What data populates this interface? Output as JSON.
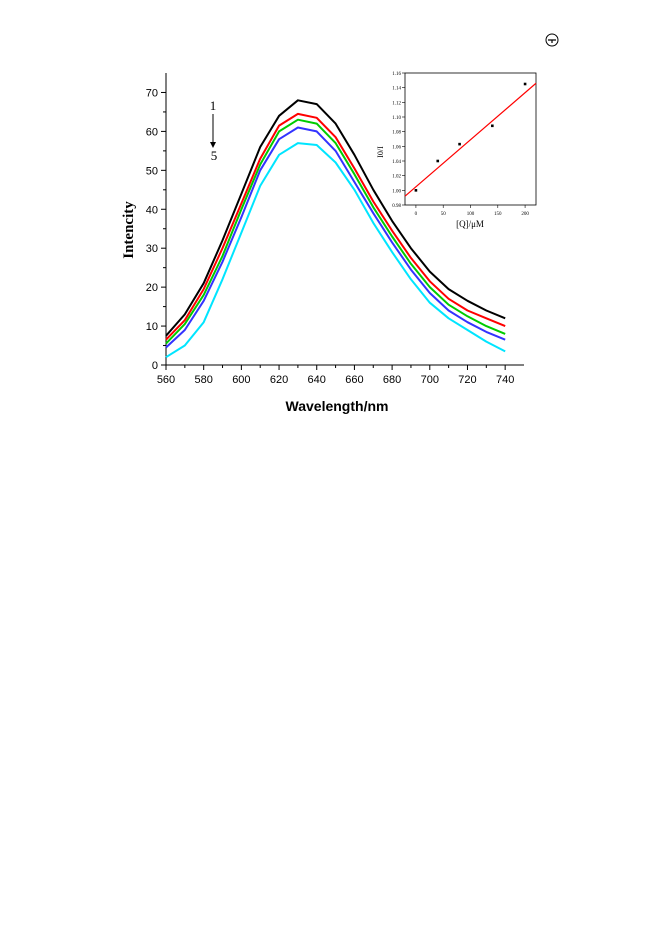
{
  "page": {
    "corner_icon": "circled-arrow-icon"
  },
  "chart_data": [
    {
      "type": "line",
      "title": "",
      "xlabel": "Wavelength/nm",
      "ylabel": "Intencity",
      "xlim": [
        560,
        750
      ],
      "ylim": [
        0,
        75
      ],
      "xticks": [
        560,
        580,
        600,
        620,
        640,
        660,
        680,
        700,
        720,
        740
      ],
      "yticks": [
        0,
        10,
        20,
        30,
        40,
        50,
        60,
        70
      ],
      "grid": false,
      "legend": "none",
      "annotation": {
        "start_label": "1",
        "end_label": "5",
        "arrow": "down"
      },
      "x": [
        560,
        570,
        580,
        590,
        600,
        610,
        620,
        630,
        640,
        650,
        660,
        670,
        680,
        690,
        700,
        710,
        720,
        730,
        740
      ],
      "series": [
        {
          "color": "#000000",
          "values": [
            7.5,
            13,
            21,
            32,
            44,
            56,
            64,
            68,
            67,
            62,
            54,
            45,
            37,
            30,
            24,
            19.5,
            16.5,
            14,
            12
          ]
        },
        {
          "color": "#ff0000",
          "values": [
            6.5,
            11.5,
            19.5,
            30,
            41.5,
            53,
            61.5,
            64.5,
            63.5,
            58.5,
            50.5,
            42,
            34.5,
            27.5,
            21.5,
            17,
            14,
            12,
            10
          ]
        },
        {
          "color": "#00cc00",
          "values": [
            5.5,
            10.5,
            18,
            28,
            40,
            51.5,
            60,
            63,
            62,
            57,
            49,
            40.5,
            33,
            26,
            20,
            15.5,
            12.5,
            10,
            8
          ]
        },
        {
          "color": "#3333ff",
          "values": [
            4.5,
            9,
            16.5,
            26.5,
            38,
            50,
            58,
            61,
            60,
            55,
            47,
            39,
            31.5,
            24.5,
            18.5,
            14,
            11,
            8.5,
            6.5
          ]
        },
        {
          "color": "#00e5ff",
          "values": [
            2,
            5,
            11,
            22,
            34,
            46,
            54,
            57,
            56.5,
            52,
            45,
            36.5,
            29,
            22,
            16,
            12,
            9,
            6,
            3.5
          ]
        }
      ]
    },
    {
      "type": "scatter",
      "title": "",
      "xlabel": "[Q]/μM",
      "ylabel": "I0/I",
      "xlim": [
        -20,
        220
      ],
      "ylim": [
        0.98,
        1.16
      ],
      "xticks": [
        0,
        50,
        100,
        150,
        200
      ],
      "yticks": [
        0.98,
        1.0,
        1.02,
        1.04,
        1.06,
        1.08,
        1.1,
        1.12,
        1.14,
        1.16
      ],
      "ytick_labels": [
        "0.98",
        "1.00",
        "1.02",
        "1.04",
        "1.06",
        "1.08",
        "1.10",
        "1.12",
        "1.14",
        "1.16"
      ],
      "points": {
        "x": [
          0,
          40,
          80,
          140,
          200
        ],
        "y": [
          1.0,
          1.04,
          1.063,
          1.088,
          1.145
        ]
      },
      "fit_line": {
        "color": "#ff0000",
        "x": [
          -20,
          220
        ],
        "y": [
          0.992,
          1.146
        ]
      }
    }
  ]
}
